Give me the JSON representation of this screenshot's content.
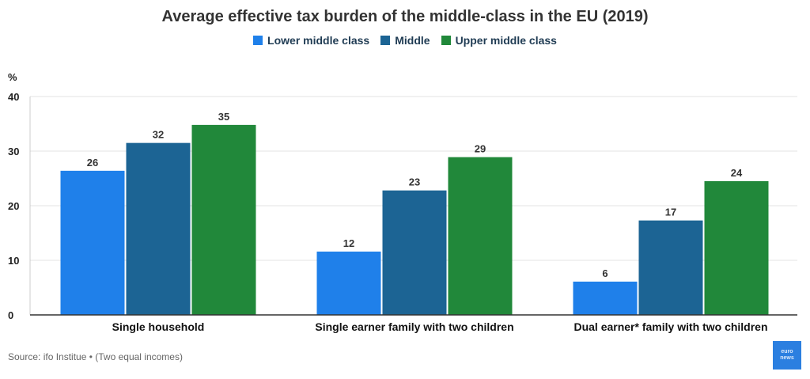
{
  "chart_data": {
    "type": "bar",
    "title": "Average effective tax burden of the middle-class in the EU (2019)",
    "ylabel": "%",
    "xlabel": "",
    "ylim": [
      0,
      40
    ],
    "yticks": [
      0,
      10,
      20,
      30,
      40
    ],
    "grid": true,
    "legend_position": "top-center",
    "categories": [
      "Single household",
      "Single earner family with two children",
      "Dual earner* family with two children"
    ],
    "series": [
      {
        "name": "Lower middle class",
        "color": "#1f80ea",
        "values": [
          26.4,
          11.6,
          6.1
        ],
        "labels": [
          "26",
          "12",
          "6"
        ]
      },
      {
        "name": "Middle",
        "color": "#1c6494",
        "values": [
          31.5,
          22.8,
          17.3
        ],
        "labels": [
          "32",
          "23",
          "17"
        ]
      },
      {
        "name": "Upper middle class",
        "color": "#21883a",
        "values": [
          34.8,
          28.9,
          24.5
        ],
        "labels": [
          "35",
          "29",
          "24"
        ]
      }
    ]
  },
  "source": "Source: ifo Institue • (Two equal incomes)",
  "badge": {
    "line1": "euro",
    "line2": "news"
  }
}
